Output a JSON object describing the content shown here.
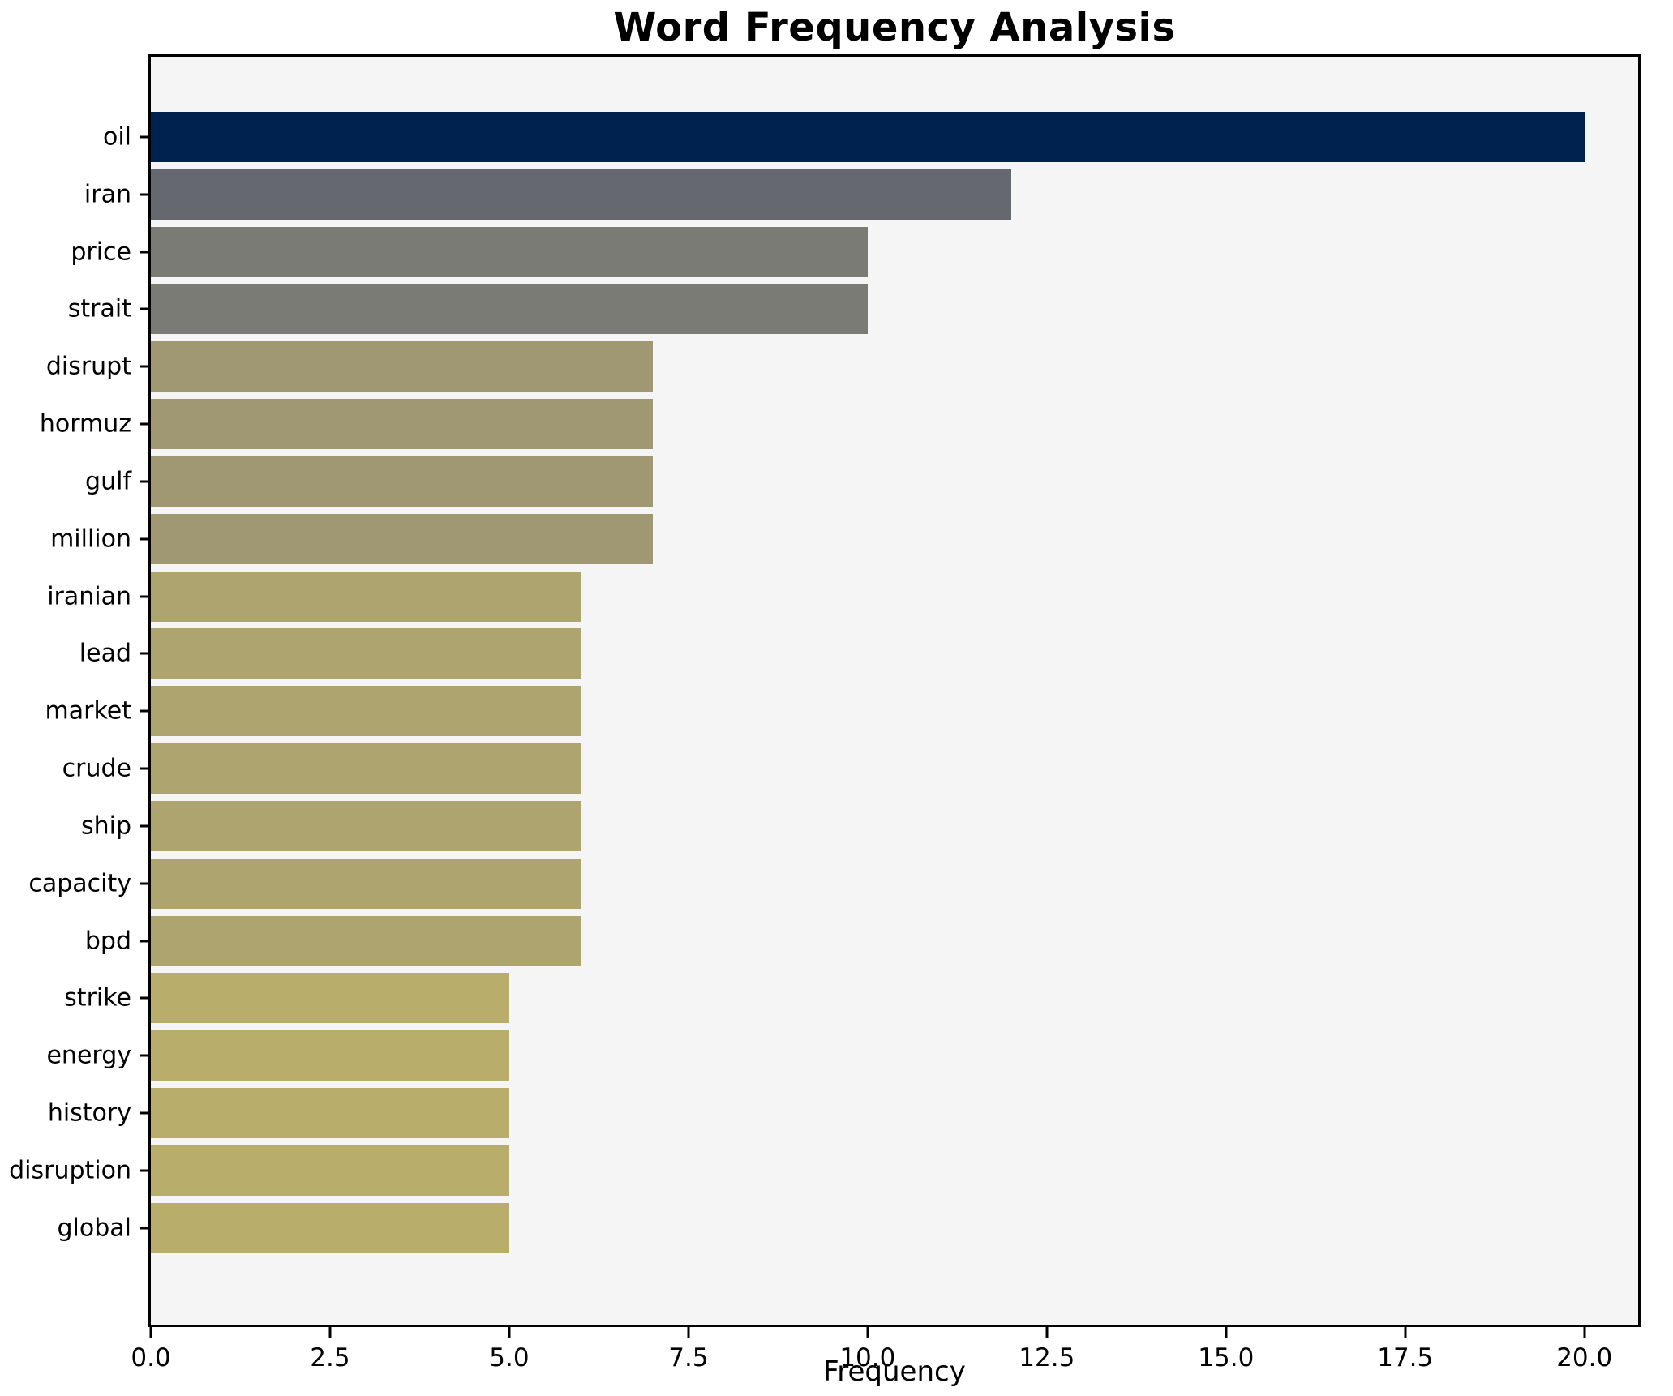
{
  "chart_data": {
    "type": "bar",
    "orientation": "horizontal",
    "title": "Word Frequency Analysis",
    "xlabel": "Frequency",
    "ylabel": "",
    "xlim": [
      0,
      20.75
    ],
    "grid": false,
    "legend": null,
    "plot_background": "#f5f5f6",
    "figure_background": "#ffffff",
    "axis_color": "#000000",
    "categories": [
      "oil",
      "iran",
      "price",
      "strait",
      "disrupt",
      "hormuz",
      "gulf",
      "million",
      "iranian",
      "lead",
      "market",
      "crude",
      "ship",
      "capacity",
      "bpd",
      "strike",
      "energy",
      "history",
      "disruption",
      "global"
    ],
    "values": [
      20,
      12,
      10,
      10,
      7,
      7,
      7,
      7,
      6,
      6,
      6,
      6,
      6,
      6,
      6,
      5,
      5,
      5,
      5,
      5
    ],
    "x_ticks": [
      {
        "value": 0,
        "label": "0.0"
      },
      {
        "value": 2.5,
        "label": "2.5"
      },
      {
        "value": 5,
        "label": "5.0"
      },
      {
        "value": 7.5,
        "label": "7.5"
      },
      {
        "value": 10,
        "label": "10.0"
      },
      {
        "value": 12.5,
        "label": "12.5"
      },
      {
        "value": 15,
        "label": "15.0"
      },
      {
        "value": 17.5,
        "label": "17.5"
      },
      {
        "value": 20,
        "label": "20.0"
      }
    ],
    "bars": [
      {
        "word": "oil",
        "value": 20,
        "color": "#00224e"
      },
      {
        "word": "iran",
        "value": 12,
        "color": "#65686f"
      },
      {
        "word": "price",
        "value": 10,
        "color": "#7b7b76"
      },
      {
        "word": "strait",
        "value": 10,
        "color": "#7b7b76"
      },
      {
        "word": "disrupt",
        "value": 7,
        "color": "#a09873"
      },
      {
        "word": "hormuz",
        "value": 7,
        "color": "#a09873"
      },
      {
        "word": "gulf",
        "value": 7,
        "color": "#a09873"
      },
      {
        "word": "million",
        "value": 7,
        "color": "#a09873"
      },
      {
        "word": "iranian",
        "value": 6,
        "color": "#aea46f"
      },
      {
        "word": "lead",
        "value": 6,
        "color": "#aea46f"
      },
      {
        "word": "market",
        "value": 6,
        "color": "#aea46f"
      },
      {
        "word": "crude",
        "value": 6,
        "color": "#aea46f"
      },
      {
        "word": "ship",
        "value": 6,
        "color": "#aea46f"
      },
      {
        "word": "capacity",
        "value": 6,
        "color": "#aea46f"
      },
      {
        "word": "bpd",
        "value": 6,
        "color": "#aea46f"
      },
      {
        "word": "strike",
        "value": 5,
        "color": "#b9ad6c"
      },
      {
        "word": "energy",
        "value": 5,
        "color": "#b9ad6c"
      },
      {
        "word": "history",
        "value": 5,
        "color": "#b9ad6c"
      },
      {
        "word": "disruption",
        "value": 5,
        "color": "#b9ad6c"
      },
      {
        "word": "global",
        "value": 5,
        "color": "#b9ad6c"
      }
    ]
  }
}
